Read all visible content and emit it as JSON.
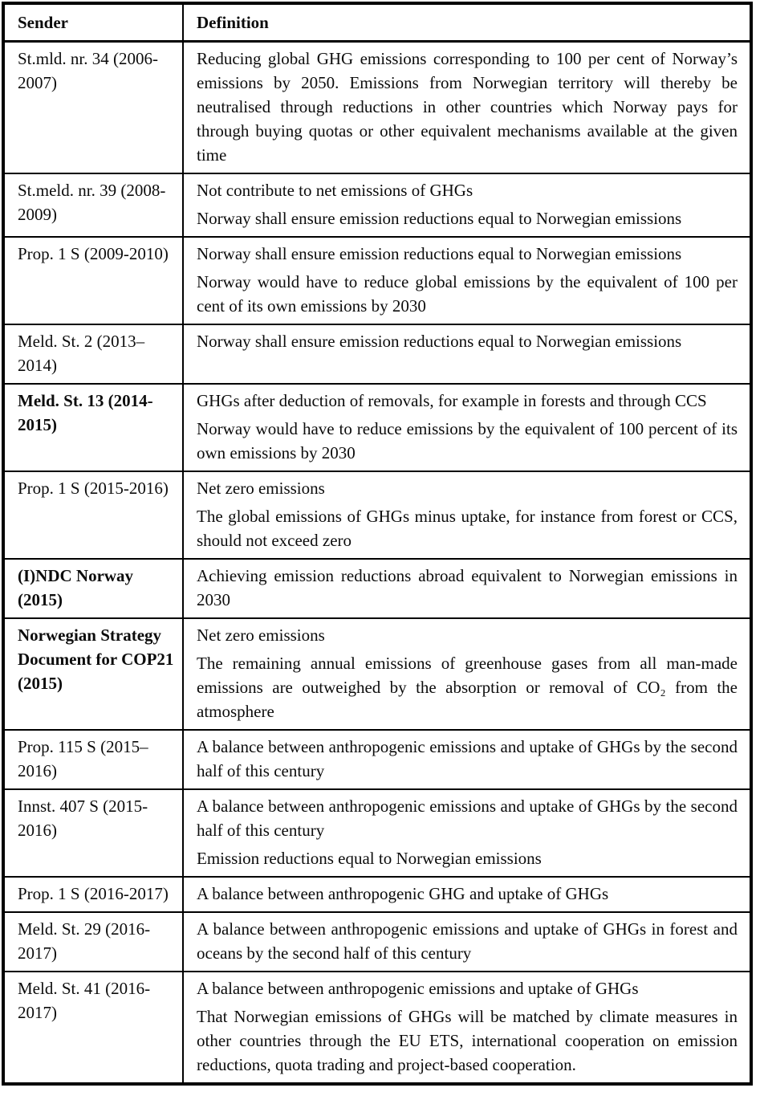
{
  "page": {
    "background_color": "#ffffff",
    "border_color": "#000000",
    "text_color": "#0c0c0c"
  },
  "table": {
    "headers": {
      "sender": "Sender",
      "definition": "Definition"
    },
    "rows": [
      {
        "sender": "St.mld. nr. 34 (2006-2007)",
        "emphasis": "normal",
        "definitions": [
          "Reducing global GHG emissions corresponding to 100 per cent of Norway’s emissions by 2050. Emissions from Norwegian territory will thereby be neutralised through reductions in other countries which Norway pays for through buying quotas or other equivalent mechanisms available at the given time"
        ]
      },
      {
        "sender": "St.meld. nr. 39 (2008-2009)",
        "emphasis": "normal",
        "definitions": [
          "Not contribute to net emissions of GHGs",
          "Norway shall ensure emission reductions equal to Norwegian emissions"
        ]
      },
      {
        "sender": "Prop. 1 S (2009-2010)",
        "emphasis": "normal",
        "definitions": [
          "Norway shall ensure emission reductions equal to Norwegian emissions",
          "Norway would have to reduce global emissions by the equivalent of 100 per cent of its own emissions by 2030"
        ]
      },
      {
        "sender": "Meld. St. 2 (2013–2014)",
        "emphasis": "normal",
        "definitions": [
          "Norway shall ensure emission reductions equal to Norwegian emissions"
        ]
      },
      {
        "sender": "Meld. St. 13 (2014-2015)",
        "emphasis": "bold",
        "definitions": [
          "GHGs after deduction of removals, for example in forests and through CCS",
          "Norway would have to reduce emissions by the equivalent of 100 percent of its own emissions by 2030"
        ]
      },
      {
        "sender": "Prop. 1 S (2015-2016)",
        "emphasis": "normal",
        "definitions": [
          "Net zero emissions",
          "The global emissions of GHGs minus uptake, for instance from forest or CCS, should not exceed zero"
        ]
      },
      {
        "sender": "(I)NDC Norway (2015)",
        "emphasis": "bold",
        "definitions": [
          "Achieving emission reductions abroad equivalent to Norwegian emissions in 2030"
        ]
      },
      {
        "sender": "Norwegian Strategy Document for COP21 (2015)",
        "emphasis": "bold",
        "definitions": [
          "Net zero emissions",
          "The remaining annual emissions of greenhouse gases from all man-made emissions are outweighed by the absorption or removal of CO₂ from the atmosphere"
        ]
      },
      {
        "sender": "Prop. 115 S (2015–2016)",
        "emphasis": "normal",
        "definitions": [
          "A balance between anthropogenic emissions and uptake of GHGs by the second half of this century"
        ]
      },
      {
        "sender": "Innst. 407 S (2015-2016)",
        "emphasis": "normal",
        "definitions": [
          "A balance between anthropogenic emissions and uptake of GHGs by the second half of this century",
          "Emission reductions equal to Norwegian emissions"
        ]
      },
      {
        "sender": "Prop. 1 S (2016-2017)",
        "emphasis": "normal",
        "definitions": [
          "A balance between anthropogenic GHG and uptake of GHGs"
        ]
      },
      {
        "sender": "Meld. St. 29 (2016-2017)",
        "emphasis": "normal",
        "definitions": [
          "A balance between anthropogenic emissions and uptake of GHGs in forest and oceans by the second half of this century"
        ]
      },
      {
        "sender": "Meld. St. 41 (2016-2017)",
        "emphasis": "normal",
        "definitions": [
          "A balance between anthropogenic emissions and uptake of GHGs",
          "That Norwegian emissions of GHGs will be matched by climate measures in other countries through the EU ETS, international cooperation on emission reductions, quota trading and project-based cooperation."
        ]
      }
    ]
  }
}
